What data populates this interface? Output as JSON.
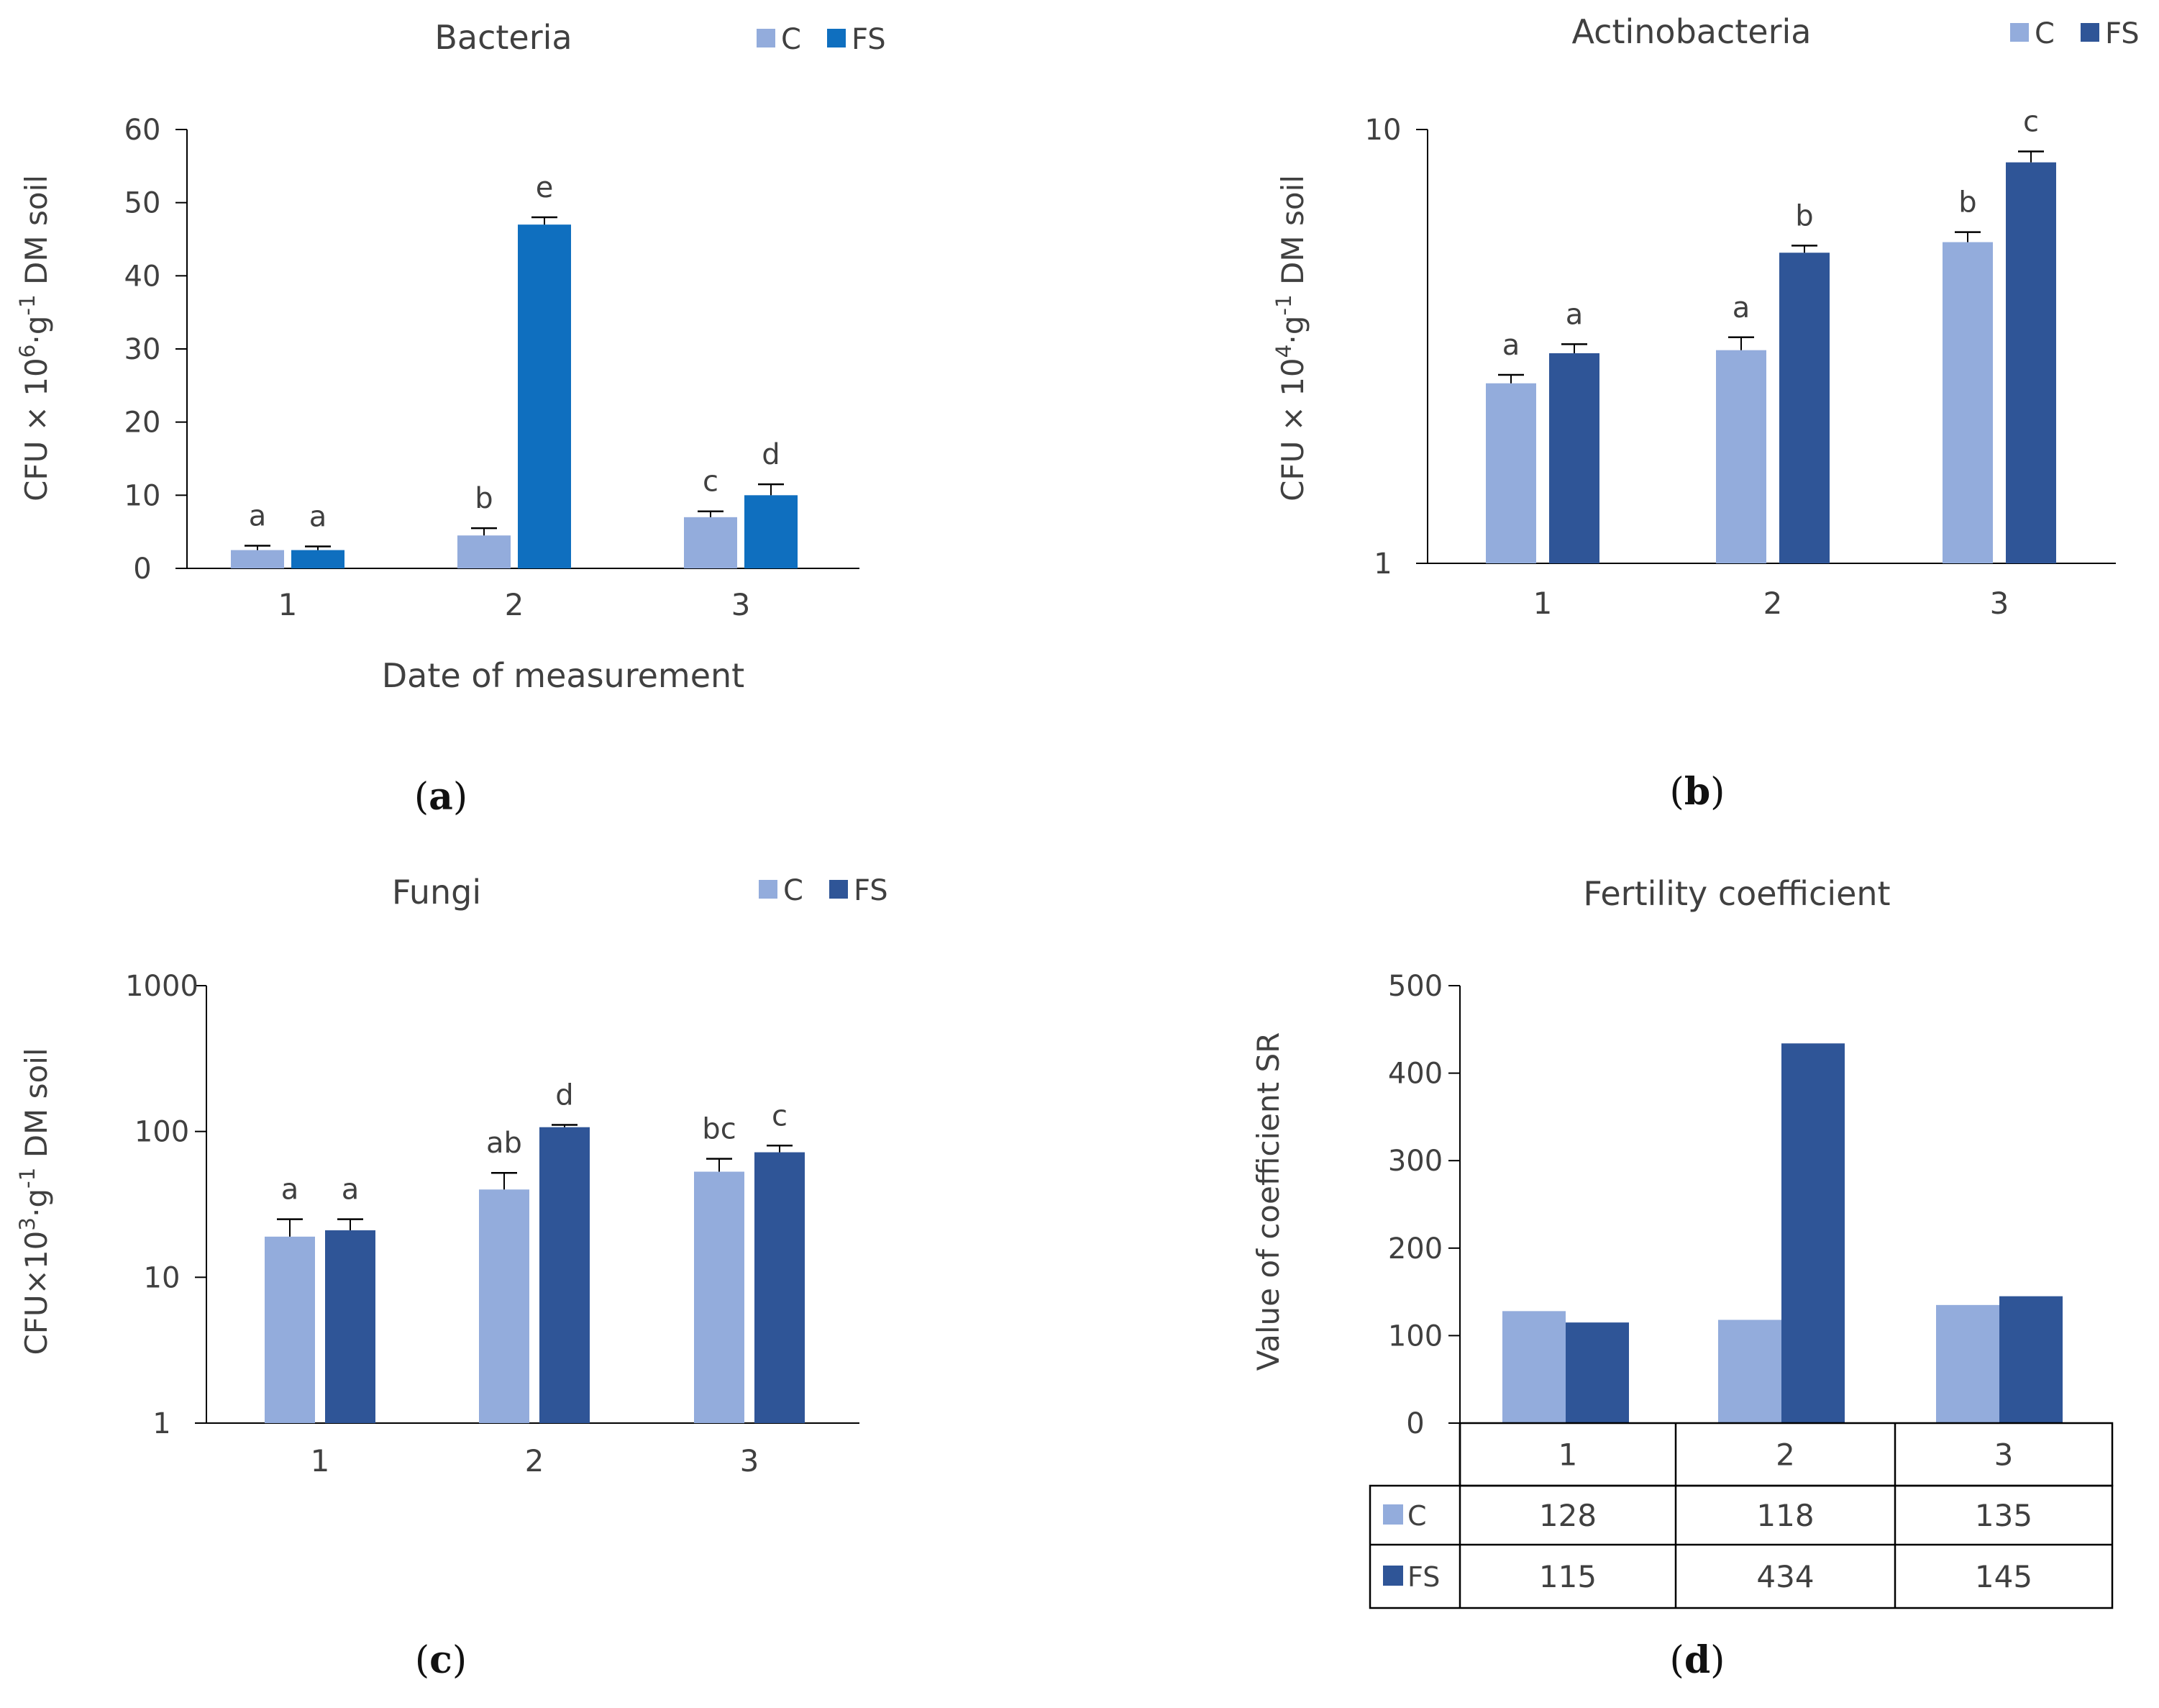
{
  "legend": {
    "c": "C",
    "fs": "FS"
  },
  "colors": {
    "c": "#93ACDC",
    "fs_bacteria": "#0F6FBF",
    "fs": "#2F5597",
    "axis": "#000000",
    "label": "#404040"
  },
  "chart_data": [
    {
      "panel": "a",
      "caption": "a",
      "type": "bar",
      "title": "Bacteria",
      "ylabel": "CFU × 10^6·g^-1 DM soil",
      "xlabel": "Date of measurement",
      "scale": "linear",
      "ylim": [
        0,
        60
      ],
      "yticks": [
        "0",
        "10",
        "20",
        "30",
        "40",
        "50",
        "60"
      ],
      "categories": [
        "1",
        "2",
        "3"
      ],
      "legend_position": "top-right",
      "series": [
        {
          "name": "C",
          "values": [
            2.5,
            4.5,
            7.0
          ],
          "errors": [
            0.6,
            1.0,
            0.8
          ],
          "letters": [
            "a",
            "b",
            "c"
          ]
        },
        {
          "name": "FS",
          "values": [
            2.5,
            47.0,
            10.0
          ],
          "errors": [
            0.5,
            1.0,
            1.5
          ],
          "letters": [
            "a",
            "e",
            "d"
          ]
        }
      ]
    },
    {
      "panel": "b",
      "caption": "b",
      "type": "bar",
      "title": "Actinobacteria",
      "ylabel": "CFU × 10^4·g^-1 DM soil",
      "xlabel": "",
      "scale": "log",
      "ylim": [
        1,
        10
      ],
      "yticks": [
        "1",
        "10"
      ],
      "categories": [
        "1",
        "2",
        "3"
      ],
      "legend_position": "top-right",
      "series": [
        {
          "name": "C",
          "values": [
            2.6,
            3.1,
            5.5
          ],
          "errors": [
            0.12,
            0.22,
            0.3
          ],
          "letters": [
            "a",
            "a",
            "b"
          ]
        },
        {
          "name": "FS",
          "values": [
            3.05,
            5.2,
            8.4
          ],
          "errors": [
            0.15,
            0.2,
            0.5
          ],
          "letters": [
            "a",
            "b",
            "c"
          ]
        }
      ]
    },
    {
      "panel": "c",
      "caption": "c",
      "type": "bar",
      "title": "Fungi",
      "ylabel": "CFU×10^3·g^-1 DM soil",
      "xlabel": "",
      "scale": "log",
      "ylim": [
        1,
        1000
      ],
      "yticks": [
        "1",
        "10",
        "100",
        "1000"
      ],
      "categories": [
        "1",
        "2",
        "3"
      ],
      "legend_position": "top-right",
      "series": [
        {
          "name": "C",
          "values": [
            19,
            40,
            53
          ],
          "errors": [
            6,
            12,
            12
          ],
          "letters": [
            "a",
            "ab",
            "bc"
          ]
        },
        {
          "name": "FS",
          "values": [
            21,
            107,
            72
          ],
          "errors": [
            4,
            4,
            8
          ],
          "letters": [
            "a",
            "d",
            "c"
          ]
        }
      ]
    },
    {
      "panel": "d",
      "caption": "d",
      "type": "bar",
      "title": "Fertility coefficient",
      "ylabel": "Value of coefficient SR",
      "xlabel": "",
      "scale": "linear",
      "ylim": [
        0,
        500
      ],
      "yticks": [
        "0",
        "100",
        "200",
        "300",
        "400",
        "500"
      ],
      "categories": [
        "1",
        "2",
        "3"
      ],
      "legend_position": "data-table",
      "series": [
        {
          "name": "C",
          "values": [
            128,
            118,
            135
          ],
          "labels": [
            "128",
            "118",
            "135"
          ]
        },
        {
          "name": "FS",
          "values": [
            115,
            434,
            145
          ],
          "labels": [
            "115",
            "434",
            "145"
          ]
        }
      ]
    }
  ]
}
